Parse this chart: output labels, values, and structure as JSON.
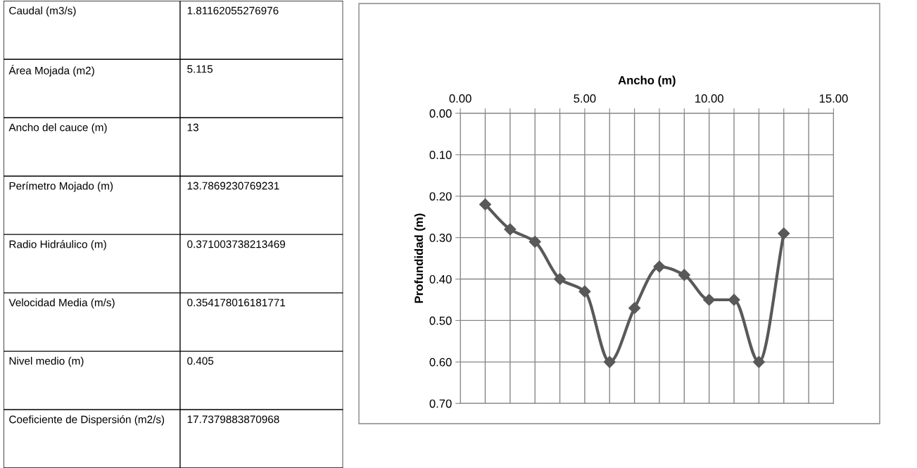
{
  "chart_data": [
    {
      "type": "other",
      "annotations": [
        "Caudal (m3/s)",
        "1.81162055276976",
        "Área Mojada (m2)",
        "5.115",
        "Ancho del cauce (m)",
        "13",
        "Perímetro Mojado (m)",
        "13.7869230769231",
        "Radio Hidráulico (m)",
        "0.371003738213469",
        "Velocidad Media (m/s)",
        "0.354178016181771",
        "Nivel medio (m)",
        "0.405",
        "Coeficiente de Dispersión (m2/s)",
        "17.7379883870968"
      ]
    },
    {
      "type": "line",
      "xlabel": "Ancho (m)",
      "ylabel": "Profundidad (m)",
      "x": [
        1,
        2,
        3,
        4,
        5,
        6,
        7,
        8,
        9,
        10,
        11,
        12,
        13
      ],
      "series": [
        {
          "color": "#595959",
          "values": [
            0.22,
            0.28,
            0.31,
            0.4,
            0.43,
            0.6,
            0.47,
            0.37,
            0.39,
            0.45,
            0.45,
            0.6,
            0.29
          ]
        }
      ],
      "xlim": [
        0,
        15
      ],
      "xticks": [
        {
          "value": 0,
          "label": "0.00"
        },
        {
          "value": 1,
          "label": null
        },
        {
          "value": 2,
          "label": null
        },
        {
          "value": 3,
          "label": null
        },
        {
          "value": 4,
          "label": null
        },
        {
          "value": 5,
          "label": "5.00"
        },
        {
          "value": 6,
          "label": null
        },
        {
          "value": 7,
          "label": null
        },
        {
          "value": 8,
          "label": null
        },
        {
          "value": 9,
          "label": null
        },
        {
          "value": 10,
          "label": "10.00"
        },
        {
          "value": 11,
          "label": null
        },
        {
          "value": 12,
          "label": null
        },
        {
          "value": 13,
          "label": null
        },
        {
          "value": 14,
          "label": null
        },
        {
          "value": 15,
          "label": "15.00"
        }
      ],
      "ylim": [
        0.7,
        0
      ],
      "yticks": [
        {
          "value": 0,
          "label": "0.00"
        },
        {
          "value": 0.1,
          "label": "0.10"
        },
        {
          "value": 0.2,
          "label": "0.20"
        },
        {
          "value": 0.3,
          "label": "0.30"
        },
        {
          "value": 0.4,
          "label": "0.40"
        },
        {
          "value": 0.5,
          "label": "0.50"
        },
        {
          "value": 0.6,
          "label": "0.60"
        },
        {
          "value": 0.7,
          "label": "0.70"
        }
      ],
      "grid": true,
      "marker": "diamond",
      "line_style": "solid"
    }
  ]
}
